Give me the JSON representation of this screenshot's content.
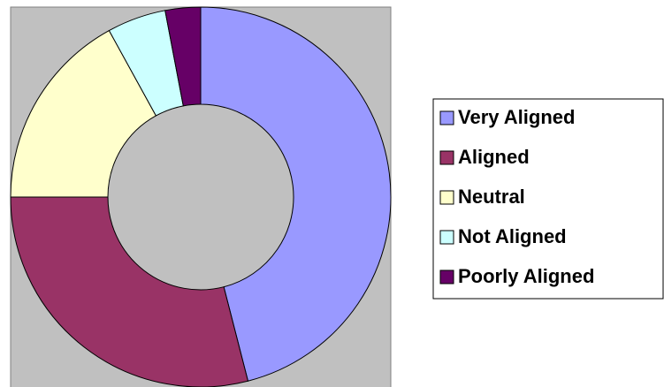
{
  "chart_data": {
    "type": "donut",
    "categories": [
      "Very Aligned",
      "Aligned",
      "Neutral",
      "Not Aligned",
      "Poorly Aligned"
    ],
    "values": [
      46,
      29,
      17,
      5,
      3
    ],
    "colors": [
      "#9999FF",
      "#993366",
      "#FFFFCC",
      "#CCFFFF",
      "#660066"
    ],
    "legend": "right"
  }
}
